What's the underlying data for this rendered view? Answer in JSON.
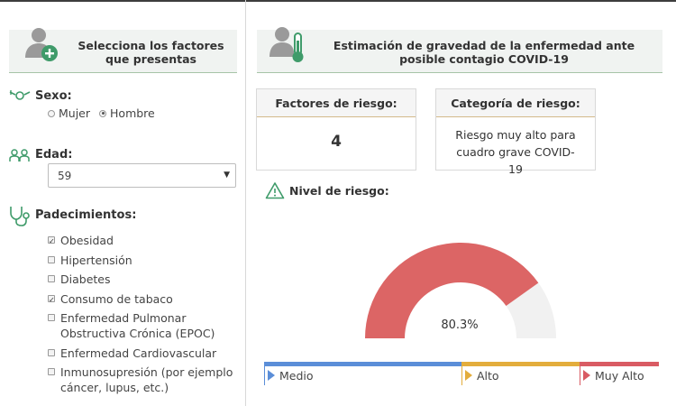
{
  "left_panel": {
    "header": "Selecciona los factores que presentas",
    "sexo": {
      "label": "Sexo:",
      "options": [
        "Mujer",
        "Hombre"
      ],
      "selected": "Hombre"
    },
    "edad": {
      "label": "Edad:",
      "value": "59"
    },
    "padecimientos": {
      "label": "Padecimientos:",
      "items": [
        {
          "label": "Obesidad",
          "checked": true
        },
        {
          "label": "Hipertensión",
          "checked": false
        },
        {
          "label": "Diabetes",
          "checked": false
        },
        {
          "label": "Consumo de tabaco",
          "checked": true
        },
        {
          "label": "Enfermedad Pulmonar Obstructiva Crónica (EPOC)",
          "checked": false
        },
        {
          "label": "Enfermedad Cardiovascular",
          "checked": false
        },
        {
          "label": "Inmunosupresión (por ejemplo cáncer, lupus, etc.)",
          "checked": false
        }
      ]
    }
  },
  "right_panel": {
    "header": "Estimación de gravedad de la enfermedad ante posible contagio COVID-19",
    "factores": {
      "label": "Factores de riesgo:",
      "value": "4"
    },
    "categoria": {
      "label": "Categoría de riesgo:",
      "value": "Riesgo muy alto para cuadro grave COVID-19"
    },
    "nivel_label": "Nivel de riesgo:",
    "gauge": {
      "value_text": "80.3%",
      "fraction": 0.803,
      "fill_color": "#dc6565",
      "track_color": "#f1f1f1"
    },
    "scale": [
      {
        "label": "Medio",
        "color": "#5b8ed8"
      },
      {
        "label": "Alto",
        "color": "#e3ad3c"
      },
      {
        "label": "Muy Alto",
        "color": "#d95b63"
      }
    ]
  },
  "colors": {
    "accent_green": "#3f9b6a",
    "header_bg": "#f0f3f1"
  }
}
